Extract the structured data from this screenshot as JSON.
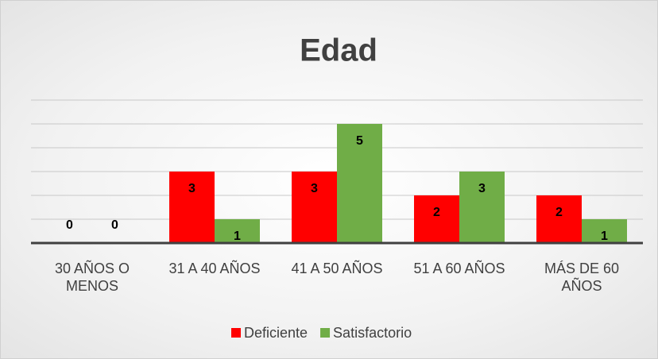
{
  "chart_data": {
    "type": "bar",
    "title": "Edad",
    "categories": [
      "30 AÑOS O MENOS",
      "31 A 40 AÑOS",
      "41 A 50 AÑOS",
      "51 A 60 AÑOS",
      "MÁS DE 60 AÑOS"
    ],
    "series": [
      {
        "name": "Deficiente",
        "color": "#ff0000",
        "values": [
          0,
          3,
          3,
          2,
          2
        ]
      },
      {
        "name": "Satisfactorio",
        "color": "#70ad47",
        "values": [
          0,
          1,
          5,
          3,
          1
        ]
      }
    ],
    "ylim": [
      0,
      6
    ],
    "yticks": [
      0,
      1,
      2,
      3,
      4,
      5,
      6
    ],
    "grid": true,
    "legend": "bottom"
  }
}
